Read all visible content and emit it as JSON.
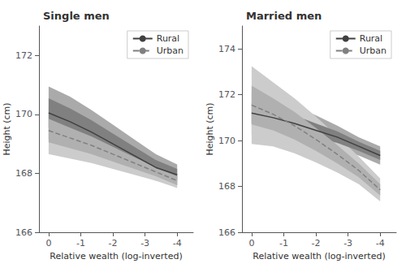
{
  "chart_data": [
    {
      "type": "line",
      "title": "Single men",
      "x": [
        0.0,
        -0.667,
        -1.333,
        -2.0,
        -2.667,
        -3.333,
        -4.0
      ],
      "xlabel": "Relative wealth (log-inverted)",
      "ylabel": "Height (cm)",
      "xlim": [
        0.3,
        -4.5
      ],
      "xticks": [
        0,
        -1,
        -2,
        -3,
        -4
      ],
      "ylim": [
        166.0,
        173.0
      ],
      "yticks": [
        166,
        168,
        170,
        172
      ],
      "grid": false,
      "legend": "upper right",
      "series": [
        {
          "type": "band",
          "color": "#aaaaaa",
          "lower": [
            169.15,
            168.9,
            168.65,
            168.35,
            168.05,
            167.75,
            167.6
          ],
          "upper": [
            170.95,
            170.6,
            170.15,
            169.65,
            169.15,
            168.65,
            168.3
          ]
        },
        {
          "type": "band",
          "color": "#cccccc",
          "lower": [
            168.65,
            168.5,
            168.35,
            168.15,
            167.95,
            167.75,
            167.5
          ],
          "upper": [
            170.25,
            169.9,
            169.55,
            169.15,
            168.75,
            168.35,
            168.0
          ]
        },
        {
          "type": "band",
          "color": "#808080",
          "lower": [
            169.55,
            169.3,
            169.0,
            168.65,
            168.3,
            167.95,
            167.75
          ],
          "upper": [
            170.55,
            170.2,
            169.8,
            169.35,
            168.9,
            168.45,
            168.15
          ]
        },
        {
          "type": "band",
          "color": "#b0b0b0",
          "lower": [
            169.05,
            168.85,
            168.65,
            168.4,
            168.15,
            167.9,
            167.6
          ],
          "upper": [
            169.85,
            169.55,
            169.25,
            168.9,
            168.55,
            168.2,
            167.9
          ]
        },
        {
          "type": "line",
          "name": "Rural",
          "color": "#404040",
          "line_style": "solid",
          "values": [
            170.05,
            169.75,
            169.4,
            169.0,
            168.6,
            168.2,
            167.95
          ]
        },
        {
          "type": "line",
          "name": "Urban",
          "color": "#808080",
          "line_style": "dashed",
          "values": [
            169.45,
            169.2,
            168.95,
            168.65,
            168.35,
            168.05,
            167.75
          ]
        }
      ]
    },
    {
      "type": "line",
      "title": "Married men",
      "x": [
        0.0,
        -0.667,
        -1.333,
        -2.0,
        -2.667,
        -3.333,
        -4.0
      ],
      "xlabel": "Relative wealth (log-inverted)",
      "ylabel": "Height (cm)",
      "xlim": [
        0.3,
        -4.5
      ],
      "xticks": [
        0,
        -1,
        -2,
        -3,
        -4
      ],
      "ylim": [
        166.0,
        175.0
      ],
      "yticks": [
        166,
        168,
        170,
        172,
        174
      ],
      "grid": false,
      "legend": "upper right",
      "series": [
        {
          "type": "band",
          "color": "#aaaaaa",
          "lower": [
            170.25,
            170.15,
            170.0,
            169.8,
            169.65,
            169.35,
            168.95
          ],
          "upper": [
            172.15,
            171.85,
            171.5,
            171.1,
            170.65,
            170.15,
            169.75
          ]
        },
        {
          "type": "band",
          "color": "#cccccc",
          "lower": [
            169.85,
            169.75,
            169.45,
            169.05,
            168.6,
            168.1,
            167.35
          ],
          "upper": [
            173.25,
            172.55,
            171.85,
            171.05,
            170.2,
            169.3,
            168.35
          ]
        },
        {
          "type": "band",
          "color": "#808080",
          "lower": [
            170.75,
            170.6,
            170.4,
            170.15,
            169.9,
            169.55,
            169.15
          ],
          "upper": [
            171.65,
            171.4,
            171.1,
            170.75,
            170.4,
            169.95,
            169.55
          ]
        },
        {
          "type": "band",
          "color": "#b0b0b0",
          "lower": [
            170.7,
            170.45,
            170.05,
            169.55,
            169.0,
            168.4,
            167.6
          ],
          "upper": [
            172.4,
            171.85,
            171.25,
            170.55,
            169.8,
            169.0,
            168.1
          ]
        },
        {
          "type": "line",
          "name": "Rural",
          "color": "#404040",
          "line_style": "solid",
          "values": [
            171.2,
            171.0,
            170.75,
            170.45,
            170.15,
            169.75,
            169.35
          ]
        },
        {
          "type": "line",
          "name": "Urban",
          "color": "#808080",
          "line_style": "dashed",
          "values": [
            171.55,
            171.15,
            170.65,
            170.05,
            169.4,
            168.7,
            167.85
          ]
        }
      ]
    }
  ]
}
